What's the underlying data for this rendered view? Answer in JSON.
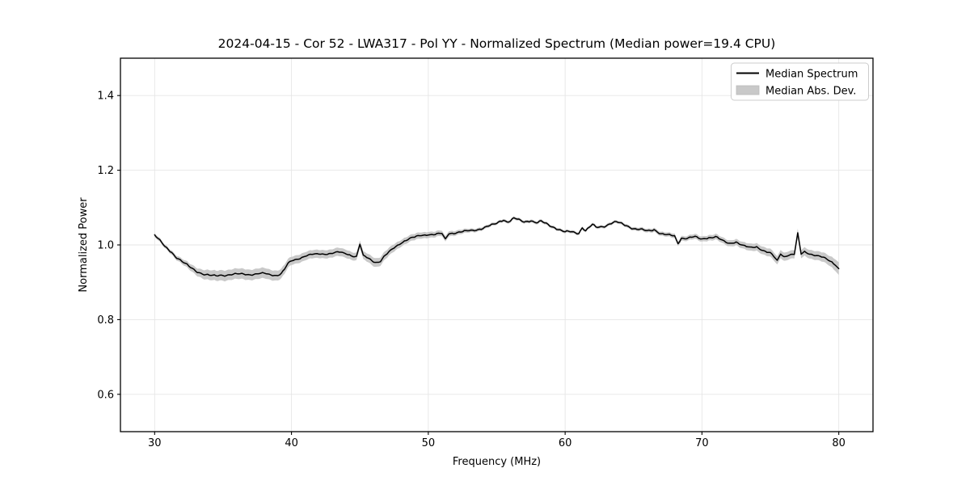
{
  "figure": {
    "title": "2024-04-15 - Cor 52 - LWA317 - Pol YY - Normalized Spectrum (Median power=19.4 CPU)",
    "xlabel": "Frequency (MHz)",
    "ylabel": "Normalized Power"
  },
  "legend": {
    "position": "upper right",
    "items": [
      {
        "label": "Median Spectrum",
        "swatch": "line",
        "color": "#000000"
      },
      {
        "label": "Median Abs. Dev.",
        "swatch": "patch",
        "color": "#c9c9c9"
      }
    ]
  },
  "chart_data": {
    "type": "line",
    "title": "2024-04-15 - Cor 52 - LWA317 - Pol YY - Normalized Spectrum (Median power=19.4 CPU)",
    "xlabel": "Frequency (MHz)",
    "ylabel": "Normalized Power",
    "xlim": [
      27.5,
      82.5
    ],
    "ylim": [
      0.5,
      1.5
    ],
    "xticks": [
      30,
      40,
      50,
      60,
      70,
      80
    ],
    "yticks": [
      0.6,
      0.8,
      1.0,
      1.2,
      1.4
    ],
    "xtick_labels": [
      "30",
      "40",
      "50",
      "60",
      "70",
      "80"
    ],
    "ytick_labels": [
      "0.6",
      "0.8",
      "1.0",
      "1.2",
      "1.4"
    ],
    "grid": true,
    "legend_position": "upper right",
    "median_power_cpu": 19.4,
    "colors": {
      "line": "#000000",
      "band": "#c9c9c9",
      "grid": "#e6e6e6",
      "spine": "#000000",
      "legend_edge": "#cccccc"
    },
    "series": [
      {
        "name": "Median Spectrum",
        "style": "line",
        "color": "#000000",
        "freq_start": 30.0,
        "freq_step": 0.25,
        "power": [
          1.027,
          1.016,
          1.006,
          0.995,
          0.988,
          0.981,
          0.97,
          0.963,
          0.955,
          0.949,
          0.942,
          0.937,
          0.931,
          0.927,
          0.923,
          0.92,
          0.918,
          0.917,
          0.917,
          0.919,
          0.92,
          0.919,
          0.921,
          0.92,
          0.922,
          0.921,
          0.923,
          0.921,
          0.922,
          0.921,
          0.923,
          0.922,
          0.924,
          0.921,
          0.921,
          0.919,
          0.92,
          0.923,
          0.935,
          0.949,
          0.957,
          0.96,
          0.964,
          0.967,
          0.971,
          0.972,
          0.974,
          0.974,
          0.976,
          0.976,
          0.977,
          0.977,
          0.978,
          0.979,
          0.98,
          0.978,
          0.977,
          0.974,
          0.971,
          0.969,
          1.002,
          0.97,
          0.966,
          0.961,
          0.956,
          0.954,
          0.957,
          0.968,
          0.976,
          0.984,
          0.992,
          0.999,
          1.006,
          1.011,
          1.015,
          1.018,
          1.02,
          1.023,
          1.026,
          1.027,
          1.029,
          1.028,
          1.028,
          1.029,
          1.03,
          1.015,
          1.031,
          1.032,
          1.033,
          1.034,
          1.035,
          1.036,
          1.038,
          1.039,
          1.041,
          1.043,
          1.045,
          1.048,
          1.051,
          1.054,
          1.058,
          1.064,
          1.068,
          1.062,
          1.064,
          1.071,
          1.068,
          1.065,
          1.062,
          1.064,
          1.066,
          1.061,
          1.059,
          1.063,
          1.058,
          1.055,
          1.05,
          1.047,
          1.042,
          1.038,
          1.034,
          1.035,
          1.035,
          1.033,
          1.032,
          1.047,
          1.038,
          1.046,
          1.054,
          1.047,
          1.048,
          1.05,
          1.052,
          1.057,
          1.059,
          1.061,
          1.058,
          1.055,
          1.052,
          1.048,
          1.044,
          1.042,
          1.041,
          1.039,
          1.037,
          1.039,
          1.042,
          1.036,
          1.03,
          1.028,
          1.026,
          1.025,
          1.024,
          1.005,
          1.019,
          1.018,
          1.018,
          1.02,
          1.021,
          1.018,
          1.016,
          1.019,
          1.02,
          1.02,
          1.021,
          1.016,
          1.011,
          1.008,
          1.005,
          1.007,
          1.008,
          1.002,
          0.997,
          0.995,
          0.993,
          0.995,
          0.996,
          0.99,
          0.984,
          0.98,
          0.977,
          0.969,
          0.958,
          0.978,
          0.969,
          0.972,
          0.973,
          0.974,
          1.03,
          0.976,
          0.983,
          0.979,
          0.975,
          0.972,
          0.969,
          0.967,
          0.964,
          0.96,
          0.955,
          0.948,
          0.936
        ]
      },
      {
        "name": "Median Abs. Dev.",
        "style": "band",
        "color": "#c9c9c9",
        "mad_anchors": [
          [
            30,
            0.005
          ],
          [
            31,
            0.005
          ],
          [
            32,
            0.007
          ],
          [
            33,
            0.01
          ],
          [
            33.8,
            0.013
          ],
          [
            35,
            0.014
          ],
          [
            38,
            0.014
          ],
          [
            39.3,
            0.013
          ],
          [
            40,
            0.011
          ],
          [
            44,
            0.011
          ],
          [
            45,
            0.01
          ],
          [
            46,
            0.012
          ],
          [
            46.8,
            0.011
          ],
          [
            48,
            0.009
          ],
          [
            50,
            0.008
          ],
          [
            51.5,
            0.007
          ],
          [
            53,
            0.005
          ],
          [
            55,
            0.004
          ],
          [
            60,
            0.004
          ],
          [
            64,
            0.004
          ],
          [
            66,
            0.005
          ],
          [
            68,
            0.006
          ],
          [
            70,
            0.007
          ],
          [
            72,
            0.008
          ],
          [
            74,
            0.01
          ],
          [
            75.5,
            0.011
          ],
          [
            77,
            0.011
          ],
          [
            78.5,
            0.012
          ],
          [
            79.3,
            0.013
          ],
          [
            80,
            0.017
          ]
        ]
      }
    ]
  }
}
